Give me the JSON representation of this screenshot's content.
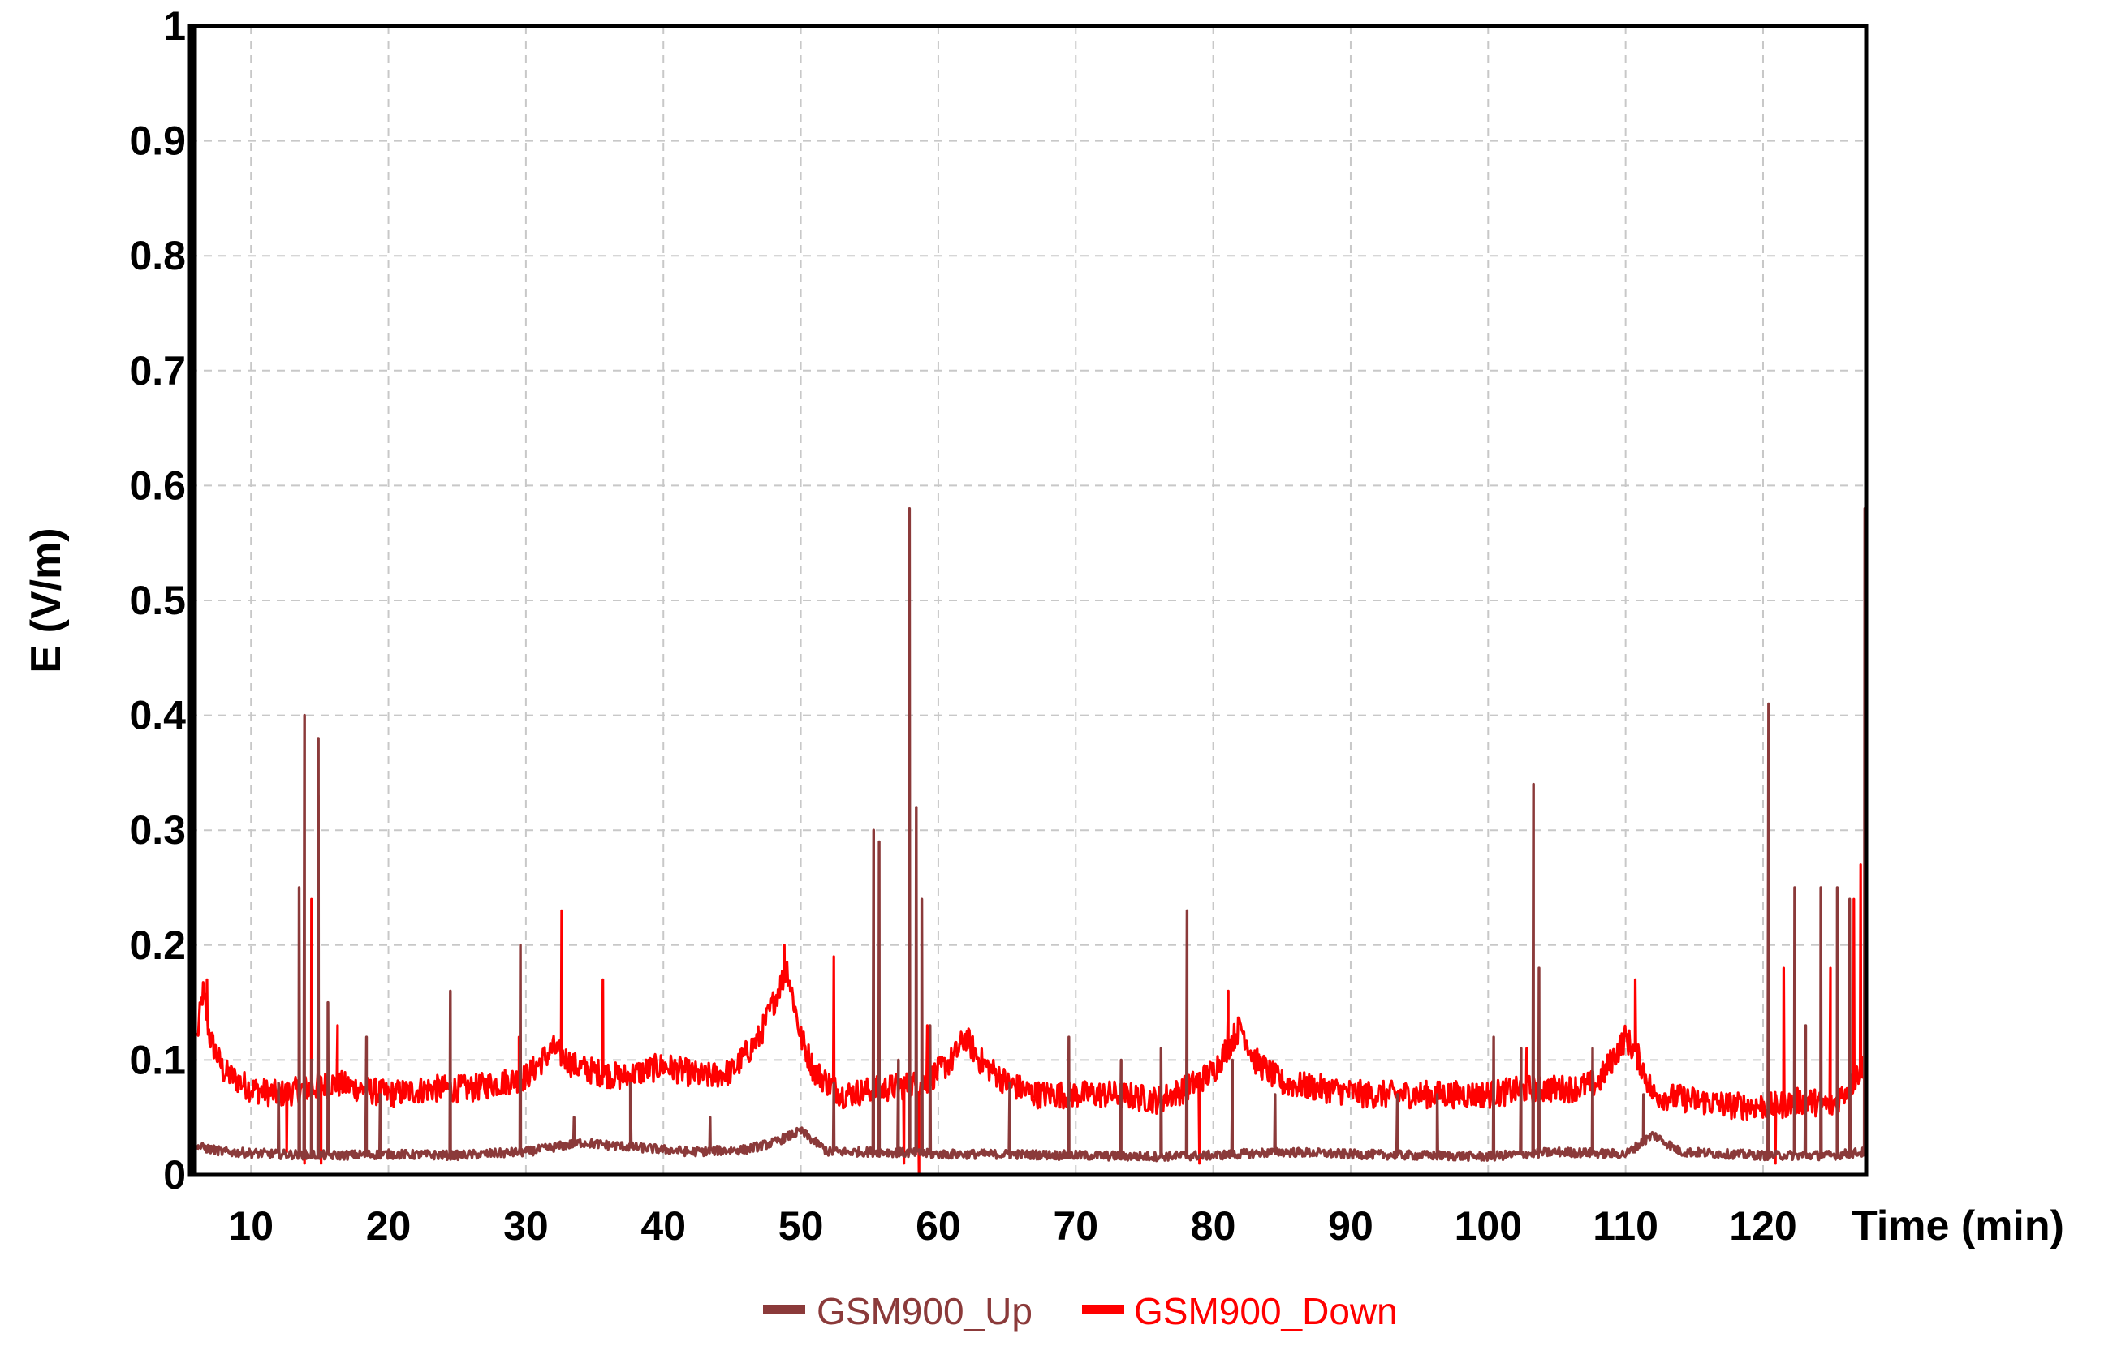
{
  "chart_data": {
    "type": "line",
    "title": "",
    "xlabel": "Time (min)",
    "ylabel": "E (V/m)",
    "xlim": [
      5.5,
      127.5
    ],
    "ylim": [
      0,
      1
    ],
    "x_ticks": [
      10,
      20,
      30,
      40,
      50,
      60,
      70,
      80,
      90,
      100,
      110,
      120
    ],
    "y_ticks": [
      0,
      0.1,
      0.2,
      0.3,
      0.4,
      0.5,
      0.6,
      0.7,
      0.8,
      0.9,
      1
    ],
    "y_tick_labels": [
      "0",
      "0.1",
      "0.2",
      "0.3",
      "0.4",
      "0.5",
      "0.6",
      "0.7",
      "0.8",
      "0.9",
      "1"
    ],
    "grid": true,
    "legend_position": "bottom-center",
    "series": [
      {
        "name": "GSM900_Up",
        "color": "#8b3a3a",
        "baseline": [
          [
            6,
            0.025
          ],
          [
            8,
            0.02
          ],
          [
            12,
            0.018
          ],
          [
            16,
            0.017
          ],
          [
            20,
            0.018
          ],
          [
            25,
            0.017
          ],
          [
            30,
            0.02
          ],
          [
            34,
            0.028
          ],
          [
            38,
            0.024
          ],
          [
            42,
            0.02
          ],
          [
            46,
            0.022
          ],
          [
            48,
            0.028
          ],
          [
            50,
            0.038
          ],
          [
            52,
            0.02
          ],
          [
            56,
            0.02
          ],
          [
            60,
            0.018
          ],
          [
            65,
            0.018
          ],
          [
            70,
            0.017
          ],
          [
            75,
            0.016
          ],
          [
            80,
            0.017
          ],
          [
            85,
            0.02
          ],
          [
            90,
            0.018
          ],
          [
            95,
            0.017
          ],
          [
            100,
            0.016
          ],
          [
            105,
            0.02
          ],
          [
            110,
            0.018
          ],
          [
            112,
            0.035
          ],
          [
            114,
            0.02
          ],
          [
            120,
            0.017
          ],
          [
            125,
            0.017
          ],
          [
            127.5,
            0.02
          ]
        ],
        "spikes": [
          [
            12,
            0.08
          ],
          [
            13.5,
            0.25
          ],
          [
            13.9,
            0.4
          ],
          [
            14.4,
            0.1
          ],
          [
            14.9,
            0.38
          ],
          [
            15.6,
            0.15
          ],
          [
            18.4,
            0.12
          ],
          [
            19.4,
            0.07
          ],
          [
            24.5,
            0.16
          ],
          [
            29.6,
            0.2
          ],
          [
            33.5,
            0.05
          ],
          [
            37.6,
            0.08
          ],
          [
            43.4,
            0.05
          ],
          [
            52.4,
            0.08
          ],
          [
            55.3,
            0.3
          ],
          [
            55.7,
            0.29
          ],
          [
            57.1,
            0.1
          ],
          [
            57.9,
            0.58
          ],
          [
            58.4,
            0.32
          ],
          [
            58.8,
            0.24
          ],
          [
            59.4,
            0.13
          ],
          [
            65.2,
            0.08
          ],
          [
            69.5,
            0.12
          ],
          [
            73.3,
            0.1
          ],
          [
            76.2,
            0.11
          ],
          [
            78.1,
            0.23
          ],
          [
            81.4,
            0.1
          ],
          [
            84.5,
            0.07
          ],
          [
            93.4,
            0.07
          ],
          [
            96.3,
            0.07
          ],
          [
            100.4,
            0.12
          ],
          [
            102.4,
            0.11
          ],
          [
            103.3,
            0.34
          ],
          [
            103.7,
            0.18
          ],
          [
            107.6,
            0.11
          ],
          [
            111.3,
            0.07
          ],
          [
            120.4,
            0.41
          ],
          [
            122.3,
            0.25
          ],
          [
            123.1,
            0.13
          ],
          [
            124.2,
            0.25
          ],
          [
            125.4,
            0.25
          ],
          [
            126.3,
            0.24
          ],
          [
            127.4,
            0.58
          ]
        ]
      },
      {
        "name": "GSM900_Down",
        "color": "#ff0000",
        "baseline": [
          [
            6,
            0.11
          ],
          [
            6.5,
            0.16
          ],
          [
            7,
            0.12
          ],
          [
            8,
            0.09
          ],
          [
            10,
            0.075
          ],
          [
            12,
            0.07
          ],
          [
            14,
            0.075
          ],
          [
            16,
            0.08
          ],
          [
            18,
            0.075
          ],
          [
            20,
            0.07
          ],
          [
            23,
            0.075
          ],
          [
            26,
            0.075
          ],
          [
            28,
            0.08
          ],
          [
            30,
            0.085
          ],
          [
            32,
            0.11
          ],
          [
            33.5,
            0.095
          ],
          [
            35,
            0.09
          ],
          [
            37,
            0.085
          ],
          [
            40,
            0.095
          ],
          [
            43,
            0.085
          ],
          [
            45,
            0.09
          ],
          [
            47,
            0.12
          ],
          [
            48,
            0.15
          ],
          [
            49,
            0.18
          ],
          [
            50,
            0.12
          ],
          [
            51,
            0.09
          ],
          [
            53,
            0.07
          ],
          [
            56,
            0.075
          ],
          [
            59,
            0.08
          ],
          [
            61,
            0.1
          ],
          [
            62,
            0.12
          ],
          [
            63,
            0.1
          ],
          [
            65,
            0.08
          ],
          [
            67,
            0.07
          ],
          [
            70,
            0.07
          ],
          [
            73,
            0.07
          ],
          [
            76,
            0.065
          ],
          [
            78,
            0.075
          ],
          [
            80,
            0.09
          ],
          [
            82,
            0.13
          ],
          [
            83,
            0.1
          ],
          [
            85,
            0.08
          ],
          [
            88,
            0.075
          ],
          [
            91,
            0.07
          ],
          [
            94,
            0.07
          ],
          [
            97,
            0.07
          ],
          [
            100,
            0.07
          ],
          [
            103,
            0.075
          ],
          [
            106,
            0.075
          ],
          [
            108,
            0.08
          ],
          [
            110,
            0.12
          ],
          [
            111,
            0.1
          ],
          [
            112,
            0.07
          ],
          [
            115,
            0.065
          ],
          [
            118,
            0.06
          ],
          [
            121,
            0.06
          ],
          [
            123,
            0.065
          ],
          [
            125,
            0.06
          ],
          [
            126.5,
            0.08
          ],
          [
            127.5,
            0.1
          ]
        ],
        "spikes": [
          [
            6.8,
            0.17
          ],
          [
            14.4,
            0.24
          ],
          [
            14.9,
            0.33
          ],
          [
            16.3,
            0.13
          ],
          [
            29.5,
            0.12
          ],
          [
            32.6,
            0.23
          ],
          [
            35.6,
            0.17
          ],
          [
            48.8,
            0.2
          ],
          [
            52.4,
            0.19
          ],
          [
            59.2,
            0.13
          ],
          [
            81.1,
            0.16
          ],
          [
            102.8,
            0.11
          ],
          [
            110.7,
            0.17
          ],
          [
            121.5,
            0.18
          ],
          [
            124.9,
            0.18
          ],
          [
            126.6,
            0.24
          ],
          [
            127.1,
            0.27
          ],
          [
            127.5,
            0.58
          ]
        ],
        "dips": [
          [
            12.6,
            0.02
          ],
          [
            13.9,
            0.01
          ],
          [
            15.1,
            0.01
          ],
          [
            57.5,
            0.01
          ],
          [
            58.6,
            0.0
          ],
          [
            79.0,
            0.01
          ],
          [
            120.9,
            0.01
          ]
        ]
      }
    ]
  }
}
